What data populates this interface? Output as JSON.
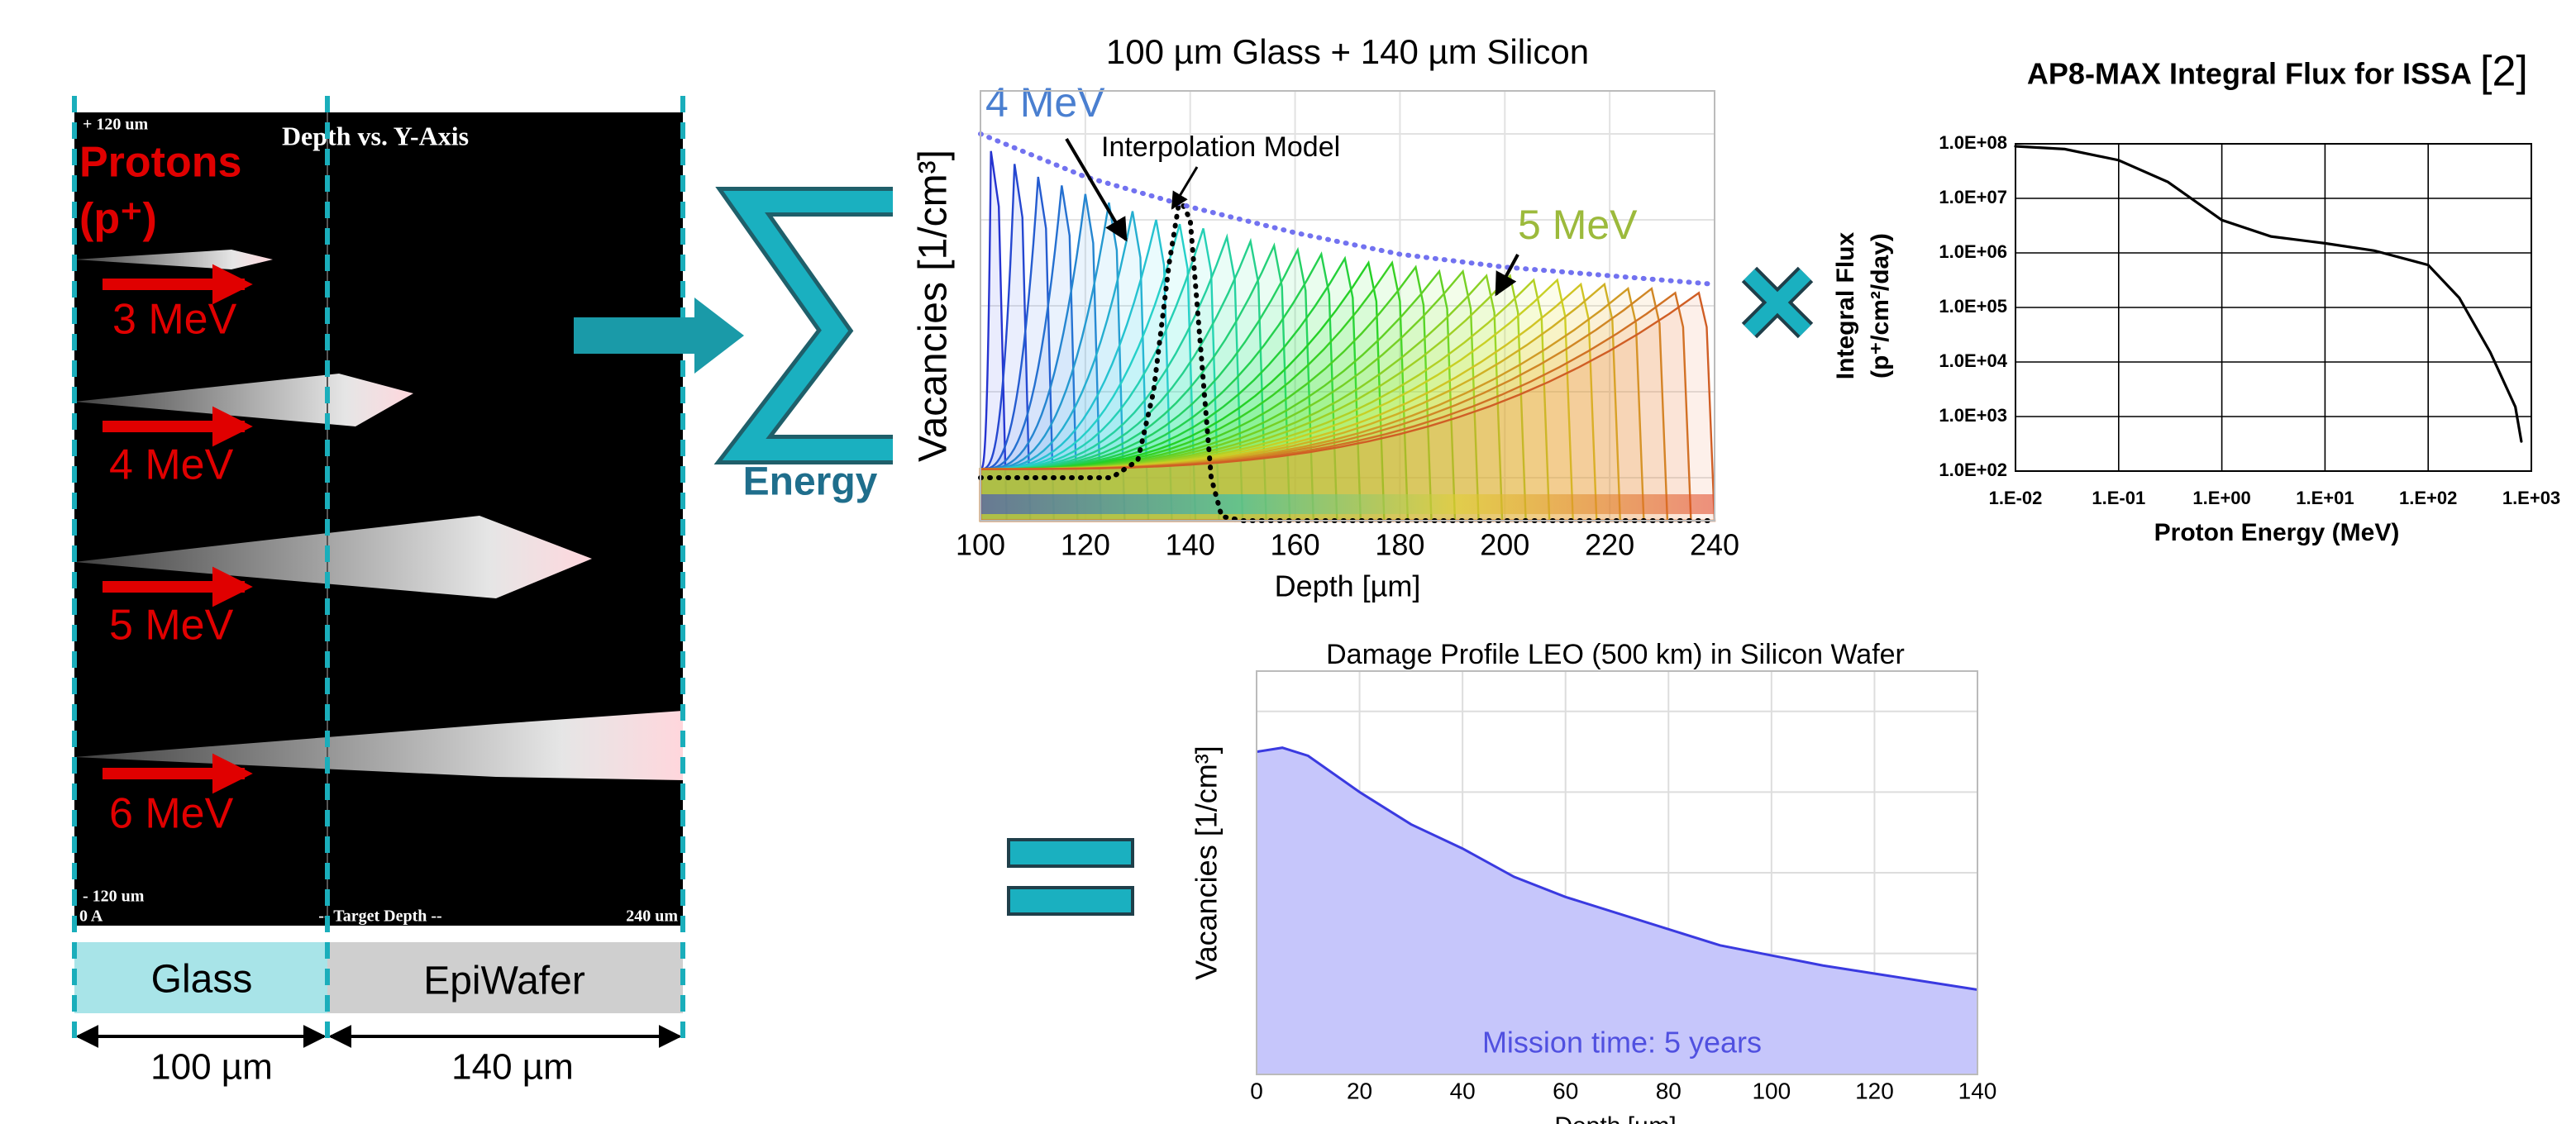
{
  "left_panel": {
    "title": "Depth vs. Y-Axis",
    "y_top": "+ 120 um",
    "y_bottom": "- 120 um",
    "x_start": "0 A",
    "x_label": "-- Target Depth --",
    "x_end": "240 um",
    "particle": [
      "Protons",
      "(p⁺)"
    ],
    "energies": [
      "3 MeV",
      "4 MeV",
      "5 MeV",
      "6 MeV"
    ],
    "layers": [
      {
        "name": "Glass",
        "thickness": "100 µm"
      },
      {
        "name": "EpiWafer",
        "thickness": "140 µm"
      }
    ]
  },
  "sum_label": "Energy",
  "chart_data": [
    {
      "type": "line",
      "title": "100 µm Glass + 140 µm Silicon",
      "xlabel": "Depth [µm]",
      "ylabel": "Vacancies [1/cm³]",
      "xlim": [
        100,
        240
      ],
      "xticks": [
        100,
        120,
        140,
        160,
        180,
        200,
        220,
        240
      ],
      "ylim": [
        0,
        100
      ],
      "grid": true,
      "peaks": {
        "colormap": "rainbow",
        "x": [
          102,
          106.5,
          111,
          115.5,
          120,
          124.5,
          129,
          133.5,
          138,
          142.5,
          147,
          151.5,
          156,
          160.5,
          165,
          169.5,
          174,
          178.5,
          183,
          187.5,
          192,
          196.5,
          201,
          205.5,
          210,
          214.5,
          219,
          223.5,
          228,
          232.5,
          237
        ],
        "values": [
          86,
          83,
          80,
          78,
          76,
          74,
          72,
          70,
          69,
          68,
          66,
          65,
          64,
          63,
          62,
          61,
          60,
          60,
          59,
          58,
          58,
          57,
          57,
          56,
          56,
          55,
          55,
          54,
          54,
          53,
          53
        ]
      },
      "series": [
        {
          "name": "Interpolation Model",
          "color": "#000000",
          "style": "dotted",
          "x": [
            100,
            125,
            130,
            133,
            136,
            138,
            140,
            142,
            144,
            146,
            150,
            240
          ],
          "values": [
            10,
            10,
            14,
            30,
            60,
            75,
            70,
            40,
            10,
            1,
            0,
            0
          ]
        },
        {
          "color": "#7272f0",
          "style": "dotted",
          "x": [
            100,
            120,
            140,
            160,
            180,
            200,
            220,
            240
          ],
          "values": [
            90,
            80,
            73,
            67,
            62,
            59,
            57,
            55
          ]
        }
      ],
      "annotations": [
        {
          "text": "4 MeV",
          "color": "#4a7fd0"
        },
        {
          "text": "5 MeV",
          "color": "#9cba3c"
        }
      ]
    },
    {
      "type": "line",
      "title": "AP8-MAX Integral Flux for ISSA",
      "reference": "[2]",
      "xlabel": "Proton Energy (MeV)",
      "ylabel": [
        "Integral Flux",
        "(p⁺/cm²/day)"
      ],
      "xscale": "log",
      "yscale": "log",
      "xlim": [
        0.01,
        1000
      ],
      "ylim": [
        100,
        100000000
      ],
      "grid": true,
      "xticks": [
        {
          "value": 0.01,
          "label": "1.E-02"
        },
        {
          "value": 0.1,
          "label": "1.E-01"
        },
        {
          "value": 1,
          "label": "1.E+00"
        },
        {
          "value": 10,
          "label": "1.E+01"
        },
        {
          "value": 100,
          "label": "1.E+02"
        },
        {
          "value": 1000,
          "label": "1.E+03"
        }
      ],
      "yticks": [
        {
          "value": 100,
          "label": "1.0E+02"
        },
        {
          "value": 1000,
          "label": "1.0E+03"
        },
        {
          "value": 10000,
          "label": "1.0E+04"
        },
        {
          "value": 100000,
          "label": "1.0E+05"
        },
        {
          "value": 1000000,
          "label": "1.0E+06"
        },
        {
          "value": 10000000,
          "label": "1.0E+07"
        },
        {
          "value": 100000000,
          "label": "1.0E+08"
        }
      ],
      "series": [
        {
          "color": "#000000",
          "x": [
            0.01,
            0.03,
            0.1,
            0.3,
            1,
            3,
            10,
            30,
            100,
            200,
            400,
            700,
            800
          ],
          "values": [
            90000000,
            80000000,
            50000000,
            20000000,
            4000000,
            2000000,
            1500000,
            1100000,
            600000,
            150000,
            15000,
            1500,
            350
          ]
        }
      ]
    },
    {
      "type": "area",
      "title": "Damage Profile LEO (500 km) in Silicon Wafer",
      "xlabel": "Depth [µm]",
      "ylabel": "Vacancies [1/cm³]",
      "xlim": [
        0,
        140
      ],
      "xticks": [
        0,
        20,
        40,
        60,
        80,
        100,
        120,
        140
      ],
      "ylim": [
        0,
        100
      ],
      "grid": true,
      "annotation": "Mission time: 5 years",
      "series": [
        {
          "color": "#3a3ae0",
          "fill": "#c6c6fb",
          "x": [
            0,
            5,
            10,
            20,
            30,
            40,
            50,
            60,
            70,
            80,
            90,
            100,
            110,
            120,
            130,
            140
          ],
          "values": [
            80,
            81,
            79,
            70,
            62,
            56,
            49,
            44,
            40,
            36,
            32,
            29.5,
            27,
            25,
            23,
            21
          ]
        }
      ]
    }
  ]
}
